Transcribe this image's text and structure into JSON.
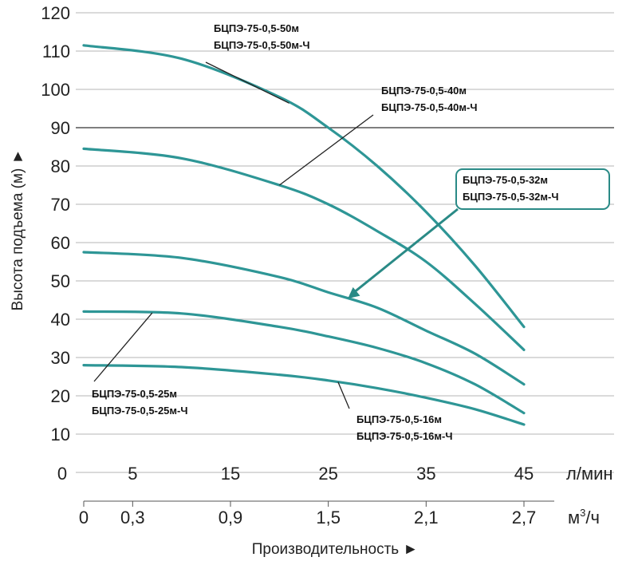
{
  "chart_data": {
    "type": "line",
    "xlabel": "Производительность ►",
    "ylabel": "Высота подъема (м) ►",
    "x_unit": "л/мин",
    "x2_unit_base": "м",
    "x2_unit_sup": "3",
    "x2_unit_tail": "/ч",
    "xlim": [
      0,
      45
    ],
    "ylim": [
      0,
      120
    ],
    "x_ticks": [
      "0",
      "5",
      "15",
      "25",
      "35",
      "45"
    ],
    "x2_ticks": [
      "0",
      "0,3",
      "0,9",
      "1,5",
      "2,1",
      "2,7"
    ],
    "y_ticks": [
      "10",
      "20",
      "30",
      "40",
      "50",
      "60",
      "70",
      "80",
      "90",
      "100",
      "110",
      "120"
    ],
    "grid": "horizontal",
    "colors": {
      "curve": "#2e9696",
      "highlight_stroke": "#2a8a86",
      "grid": "#b5b5b5",
      "grid_strong": "#333333"
    },
    "series": [
      {
        "names": [
          "БЦПЭ-75-0,5-50м",
          "БЦПЭ-75-0,5-50м-Ч"
        ],
        "x": [
          0,
          10,
          20,
          25,
          30,
          35,
          40,
          45
        ],
        "y": [
          111.5,
          108,
          98,
          90,
          80,
          68,
          54,
          38
        ]
      },
      {
        "names": [
          "БЦПЭ-75-0,5-40м",
          "БЦПЭ-75-0,5-40м-Ч"
        ],
        "x": [
          0,
          10,
          20,
          25,
          30,
          35,
          40,
          45
        ],
        "y": [
          84.5,
          82,
          75,
          70,
          63,
          55,
          44,
          32
        ]
      },
      {
        "names": [
          "БЦПЭ-75-0,5-32м",
          "БЦПЭ-75-0,5-32м-Ч"
        ],
        "highlight": true,
        "x": [
          0,
          10,
          20,
          25,
          30,
          35,
          40,
          45
        ],
        "y": [
          57.5,
          56,
          51,
          47,
          43,
          37,
          31,
          23
        ]
      },
      {
        "names": [
          "БЦПЭ-75-0,5-25м",
          "БЦПЭ-75-0,5-25м-Ч"
        ],
        "x": [
          0,
          10,
          20,
          25,
          30,
          35,
          40,
          45
        ],
        "y": [
          42,
          41.5,
          38,
          35.5,
          32.5,
          28.5,
          23,
          15.5
        ]
      },
      {
        "names": [
          "БЦПЭ-75-0,5-16м",
          "БЦПЭ-75-0,5-16м-Ч"
        ],
        "x": [
          0,
          10,
          20,
          25,
          30,
          35,
          40,
          45
        ],
        "y": [
          28,
          27.5,
          25.5,
          24,
          22,
          19.5,
          16.5,
          12.5
        ]
      }
    ]
  }
}
